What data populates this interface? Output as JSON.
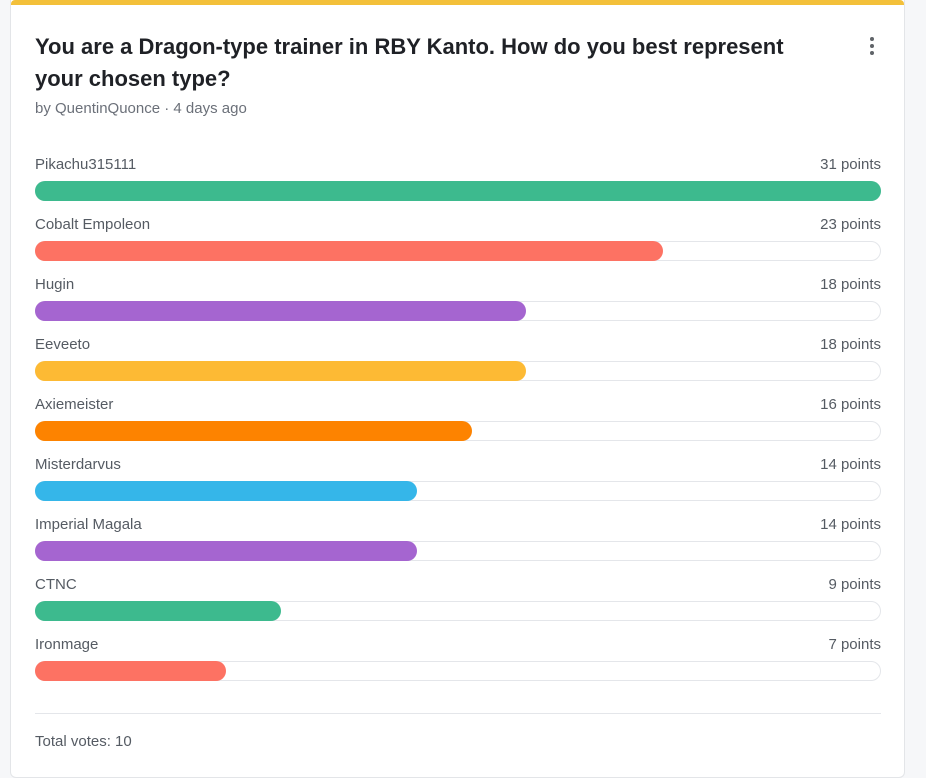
{
  "poll": {
    "title": "You are a Dragon-type trainer in RBY Kanto. How do you best represent your chosen type?",
    "byline": "by QuentinQuonce · 4 days ago",
    "max_points": 31,
    "options": [
      {
        "name": "Pikachu315111",
        "points_label": "31 points",
        "points": 31,
        "color": "#3dba8e"
      },
      {
        "name": "Cobalt Empoleon",
        "points_label": "23 points",
        "points": 23,
        "color": "#fd7263"
      },
      {
        "name": "Hugin",
        "points_label": "18 points",
        "points": 18,
        "color": "#a565d0"
      },
      {
        "name": "Eeveeto",
        "points_label": "18 points",
        "points": 18,
        "color": "#fdba34"
      },
      {
        "name": "Axiemeister",
        "points_label": "16 points",
        "points": 16,
        "color": "#fd8300"
      },
      {
        "name": "Misterdarvus",
        "points_label": "14 points",
        "points": 14,
        "color": "#35b6e9"
      },
      {
        "name": "Imperial Magala",
        "points_label": "14 points",
        "points": 14,
        "color": "#a565d0"
      },
      {
        "name": "CTNC",
        "points_label": "9 points",
        "points": 9,
        "color": "#3dba8e"
      },
      {
        "name": "Ironmage",
        "points_label": "7 points",
        "points": 7,
        "color": "#fd7263"
      }
    ],
    "total_votes": "Total votes: 10"
  },
  "colors": {
    "accent": "#f3c03a"
  }
}
